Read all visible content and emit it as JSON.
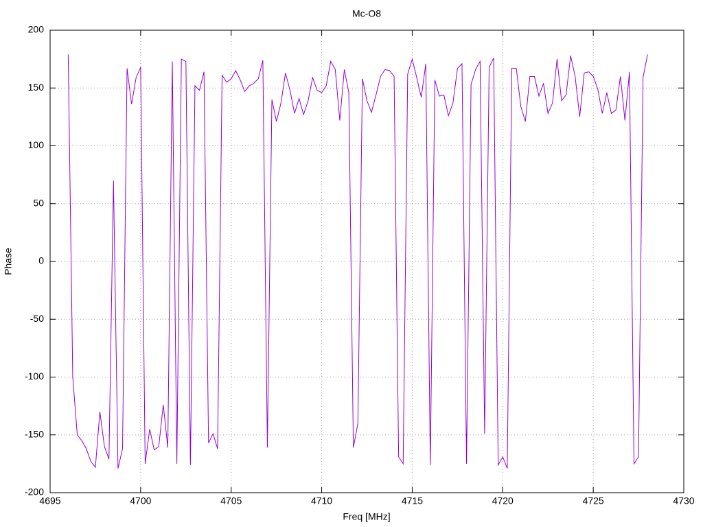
{
  "chart_data": {
    "type": "line",
    "title": "Mc-O8",
    "xlabel": "Freq [MHz]",
    "ylabel": "Phase",
    "x": [
      4696,
      4696.25,
      4696.5,
      4696.75,
      4697,
      4697.25,
      4697.5,
      4697.75,
      4698,
      4698.25,
      4698.5,
      4698.75,
      4699,
      4699.25,
      4699.5,
      4699.75,
      4700,
      4700.25,
      4700.5,
      4700.75,
      4701,
      4701.25,
      4701.5,
      4701.75,
      4702,
      4702.25,
      4702.5,
      4702.75,
      4703,
      4703.25,
      4703.5,
      4703.75,
      4704,
      4704.25,
      4704.5,
      4704.75,
      4705,
      4705.25,
      4705.5,
      4705.75,
      4706,
      4706.25,
      4706.5,
      4706.75,
      4707,
      4707.25,
      4707.5,
      4707.75,
      4708,
      4708.25,
      4708.5,
      4708.75,
      4709,
      4709.25,
      4709.5,
      4709.75,
      4710,
      4710.25,
      4710.5,
      4710.75,
      4711,
      4711.25,
      4711.5,
      4711.75,
      4712,
      4712.25,
      4712.5,
      4712.75,
      4713,
      4713.25,
      4713.5,
      4713.75,
      4714,
      4714.25,
      4714.5,
      4714.75,
      4715,
      4715.25,
      4715.5,
      4715.75,
      4716,
      4716.25,
      4716.5,
      4716.75,
      4717,
      4717.25,
      4717.5,
      4717.75,
      4718,
      4718.25,
      4718.5,
      4718.75,
      4719,
      4719.25,
      4719.5,
      4719.75,
      4720,
      4720.25,
      4720.5,
      4720.75,
      4721,
      4721.25,
      4721.5,
      4721.75,
      4722,
      4722.25,
      4722.5,
      4722.75,
      4723,
      4723.25,
      4723.5,
      4723.75,
      4724,
      4724.25,
      4724.5,
      4724.75,
      4725,
      4725.25,
      4725.5,
      4725.75,
      4726,
      4726.25,
      4726.5,
      4726.75,
      4727,
      4727.25,
      4727.5,
      4727.75,
      4728
    ],
    "series": [
      {
        "color": "#9400d3",
        "values": [
          179,
          -100,
          -150,
          -155,
          -162,
          -173,
          -178,
          -130,
          -160,
          -171,
          70,
          -179,
          -162,
          167,
          136,
          159,
          168,
          -175,
          -145,
          -163,
          -160,
          -124,
          -161,
          173,
          -175,
          175,
          173,
          -176,
          152,
          148,
          164,
          -157,
          -149,
          -162,
          161,
          155,
          158,
          165,
          157,
          147,
          152,
          154,
          158,
          174,
          -161,
          140,
          121,
          137,
          163,
          148,
          128,
          141,
          127,
          139,
          159,
          148,
          146,
          152,
          173,
          166,
          122,
          166,
          146,
          -161,
          -140,
          158,
          139,
          129,
          144,
          160,
          166,
          165,
          160,
          -169,
          -175,
          162,
          175,
          159,
          142,
          171,
          -176,
          157,
          143,
          144,
          126,
          137,
          167,
          171,
          -175,
          153,
          166,
          173,
          -149,
          168,
          176,
          -176,
          -169,
          -179,
          167,
          167,
          134,
          121,
          160,
          160,
          143,
          154,
          128,
          137,
          175,
          139,
          144,
          178,
          160,
          125,
          163,
          164,
          160,
          149,
          128,
          146,
          128,
          131,
          160,
          122,
          164,
          -175,
          -169,
          159,
          179
        ]
      }
    ],
    "xlim": [
      4695,
      4730
    ],
    "xticks": [
      4695,
      4700,
      4705,
      4710,
      4715,
      4720,
      4725,
      4730
    ],
    "ylim": [
      -200,
      200
    ],
    "yticks": [
      -200,
      -150,
      -100,
      -50,
      0,
      50,
      100,
      150,
      200
    ],
    "grid": true
  }
}
